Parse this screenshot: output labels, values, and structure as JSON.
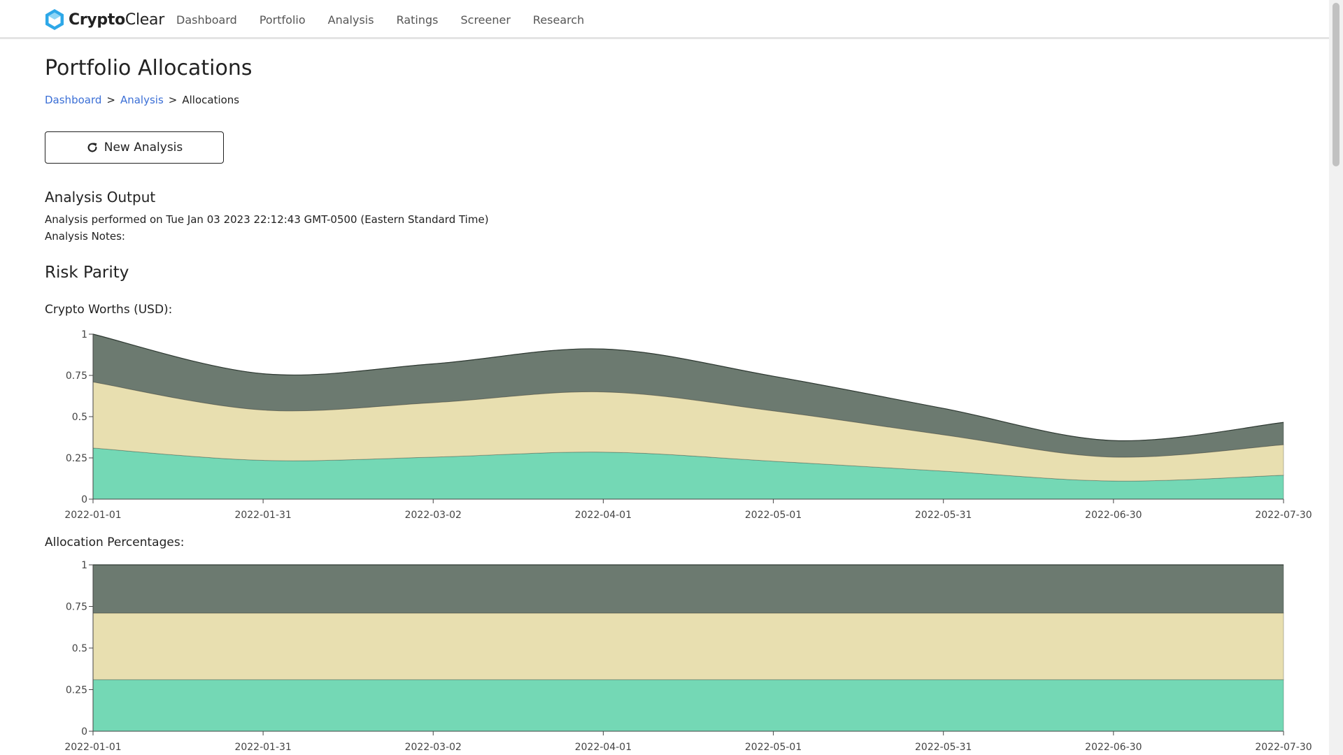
{
  "app": {
    "brand_bold": "Crypto",
    "brand_light": "Clear"
  },
  "nav": {
    "items": [
      "Dashboard",
      "Portfolio",
      "Analysis",
      "Ratings",
      "Screener",
      "Research"
    ]
  },
  "page": {
    "title": "Portfolio Allocations",
    "breadcrumb": {
      "items": [
        "Dashboard",
        "Analysis"
      ],
      "current": "Allocations",
      "separator": ">"
    },
    "new_analysis_label": "New Analysis",
    "output_heading": "Analysis Output",
    "performed_on": "Analysis performed on Tue Jan 03 2023 22:12:43 GMT-0500 (Eastern Standard Time)",
    "notes_label": "Analysis Notes:",
    "strategy_heading": "Risk Parity",
    "worths_label": "Crypto Worths (USD):",
    "alloc_label": "Allocation Percentages:"
  },
  "colors": {
    "series_top": "#6c7a70",
    "series_mid": "#e8dfb0",
    "series_bottom": "#74d8b5",
    "accent_link": "#3b6fd6",
    "logo": "#2ea8e8"
  },
  "chart_data": [
    {
      "type": "area",
      "stacked": true,
      "x": [
        "2022-01-01",
        "2022-01-31",
        "2022-03-02",
        "2022-04-01",
        "2022-05-01",
        "2022-05-31",
        "2022-06-30",
        "2022-07-30"
      ],
      "xticks": [
        "2022-01-01",
        "2022-01-31",
        "2022-03-02",
        "2022-04-01",
        "2022-05-01",
        "2022-05-31",
        "2022-06-30",
        "2022-07-30"
      ],
      "yticks": [
        "0",
        "0.25",
        "0.5",
        "0.75",
        "1"
      ],
      "ylim": [
        0,
        1
      ],
      "series": [
        {
          "values": [
            0.31,
            0.235,
            0.255,
            0.285,
            0.23,
            0.17,
            0.11,
            0.145
          ],
          "color": "#74d8b5"
        },
        {
          "values": [
            0.4,
            0.305,
            0.33,
            0.365,
            0.305,
            0.22,
            0.145,
            0.185
          ],
          "color": "#e8dfb0"
        },
        {
          "values": [
            0.29,
            0.22,
            0.235,
            0.26,
            0.21,
            0.16,
            0.1,
            0.135
          ],
          "color": "#6c7a70"
        }
      ],
      "grid": false,
      "legend": "none"
    },
    {
      "type": "area",
      "stacked": true,
      "x": [
        "2022-01-01",
        "2022-01-31",
        "2022-03-02",
        "2022-04-01",
        "2022-05-01",
        "2022-05-31",
        "2022-06-30",
        "2022-07-30"
      ],
      "xticks": [
        "2022-01-01",
        "2022-01-31",
        "2022-03-02",
        "2022-04-01",
        "2022-05-01",
        "2022-05-31",
        "2022-06-30",
        "2022-07-30"
      ],
      "yticks": [
        "0",
        "0.25",
        "0.5",
        "0.75",
        "1"
      ],
      "ylim": [
        0,
        1
      ],
      "series": [
        {
          "values": [
            0.31,
            0.31,
            0.31,
            0.31,
            0.31,
            0.31,
            0.31,
            0.31
          ],
          "color": "#74d8b5"
        },
        {
          "values": [
            0.4,
            0.4,
            0.4,
            0.4,
            0.4,
            0.4,
            0.4,
            0.4
          ],
          "color": "#e8dfb0"
        },
        {
          "values": [
            0.29,
            0.29,
            0.29,
            0.29,
            0.29,
            0.29,
            0.29,
            0.29
          ],
          "color": "#6c7a70"
        }
      ],
      "grid": false,
      "legend": "none"
    }
  ]
}
